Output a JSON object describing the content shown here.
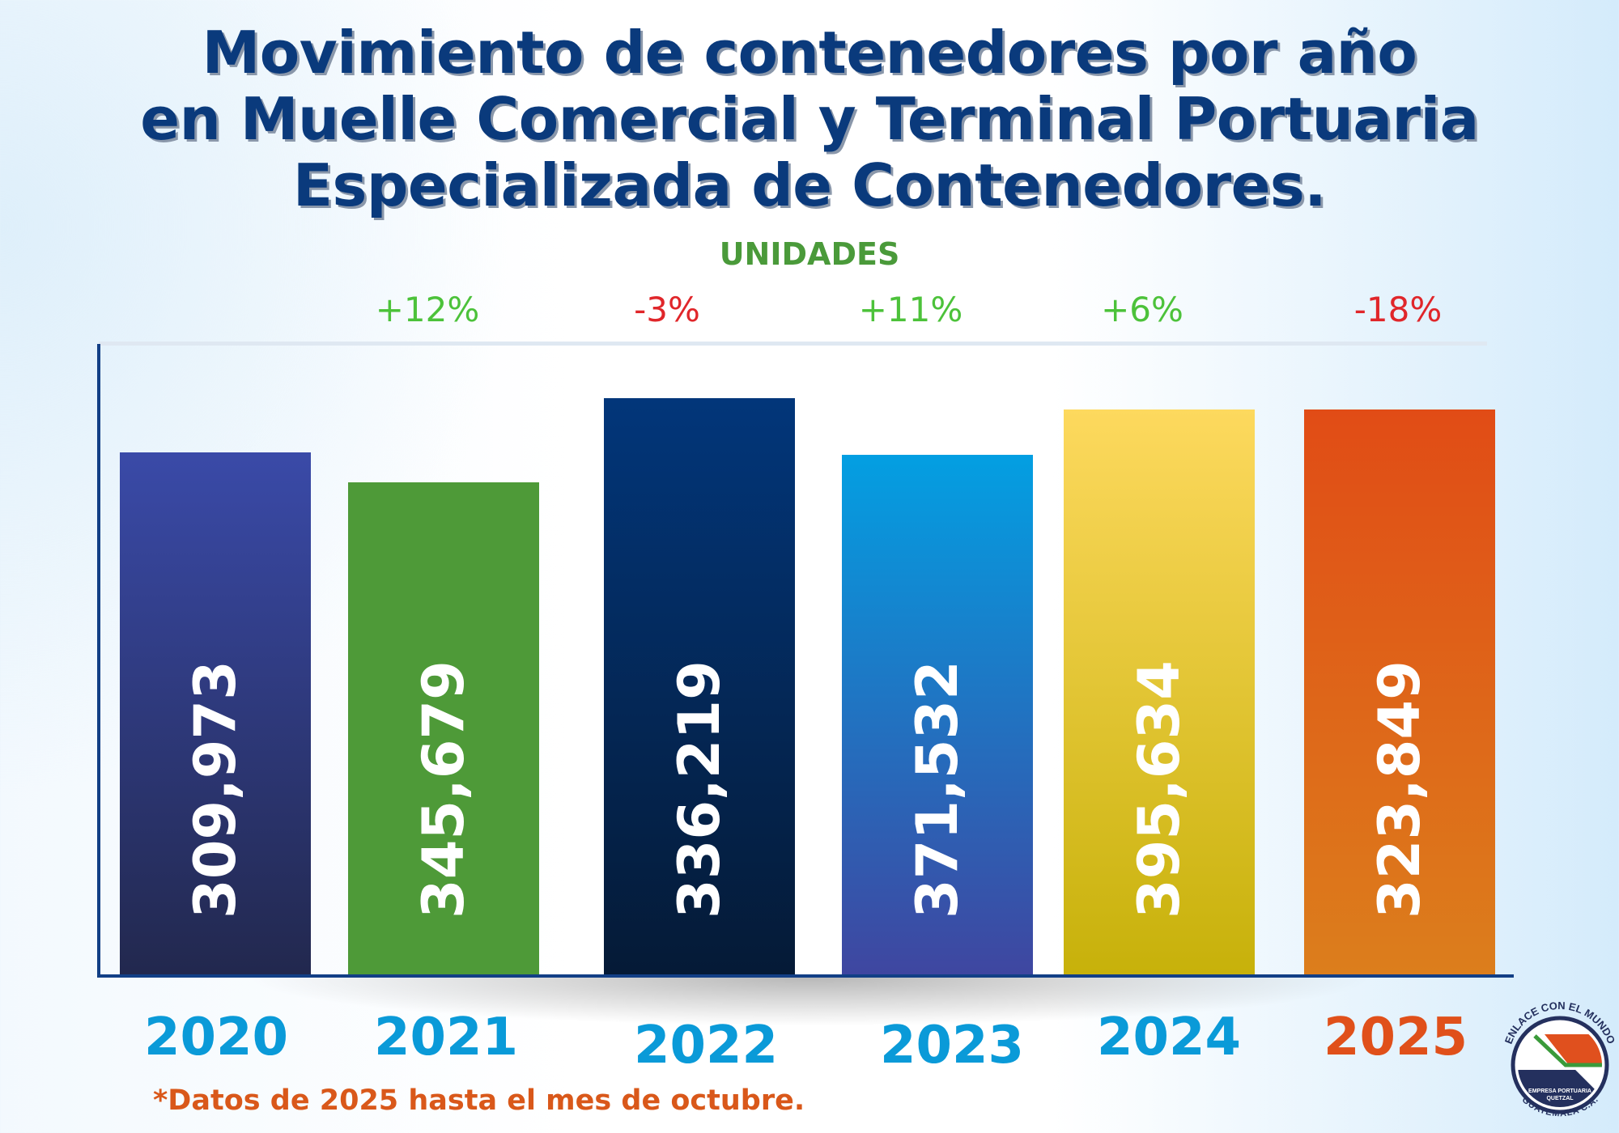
{
  "chart_data": {
    "type": "bar",
    "title": [
      "Movimiento de contenedores por año",
      "en Muelle Comercial y Terminal Portuaria",
      "Especializada de Contenedores."
    ],
    "ylabel": "UNIDADES",
    "categories": [
      "2020",
      "2021",
      "2022",
      "2023",
      "2024",
      "2025"
    ],
    "values": [
      309973,
      345679,
      336219,
      371532,
      395634,
      323849
    ],
    "value_labels": [
      "309,973",
      "345,679",
      "336,219",
      "371,532",
      "395,634",
      "323,849"
    ],
    "changes": [
      "+12%",
      "-3%",
      "+11%",
      "+6%",
      "-18%"
    ],
    "bar_colors": [
      [
        "#3a4aa8",
        "#22284e"
      ],
      [
        "#4e9a38",
        "#4e9a38"
      ],
      [
        "#02367a",
        "#051a36"
      ],
      [
        "#039fe2",
        "#3f46a0"
      ],
      [
        "#fdd95e",
        "#c7b10a"
      ],
      [
        "#e14c16",
        "#dc7e1c"
      ]
    ],
    "year_colors": [
      "#0a9ad8",
      "#0a9ad8",
      "#0a9ad8",
      "#0a9ad8",
      "#0a9ad8",
      "#e0501a"
    ],
    "change_colors": {
      "positive": "#4cc23a",
      "negative": "#e0262a"
    },
    "grid": false,
    "footnote": "*Datos de 2025 hasta el mes de octubre."
  },
  "logo": {
    "top_text": "ENLACE CON EL MUNDO",
    "center_text": [
      "EMPRESA PORTUARIA",
      "QUETZAL"
    ],
    "bottom_text": "GUATEMALA C.A."
  }
}
